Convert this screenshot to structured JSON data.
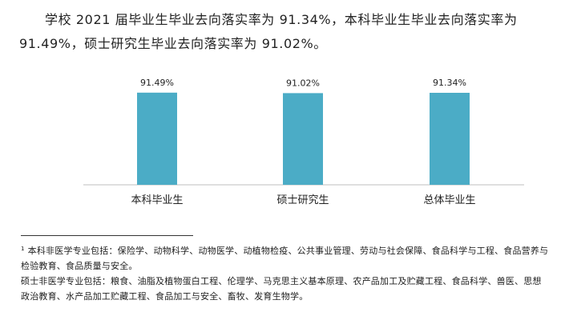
{
  "intro": {
    "text": "学校 2021 届毕业生毕业去向落实率为 91.34%，本科毕业生毕业去向落实率为 91.49%，硕士研究生毕业去向落实率为 91.02%。"
  },
  "chart_data": {
    "type": "bar",
    "categories": [
      "本科毕业生",
      "硕士研究生",
      "总体毕业生"
    ],
    "values": [
      91.49,
      91.02,
      91.34
    ],
    "value_labels": [
      "91.49%",
      "91.02%",
      "91.34%"
    ],
    "unit": "%",
    "ylim": [
      0,
      100
    ],
    "bar_color": "#4bacc6",
    "grid": false,
    "legend": "none"
  },
  "footnotes": {
    "marker": "1",
    "note1": "本科非医学专业包括：保险学、动物科学、动物医学、动植物检疫、公共事业管理、劳动与社会保障、食品科学与工程、食品营养与检验教育、食品质量与安全。",
    "note2": "硕士非医学专业包括：粮食、油脂及植物蛋白工程、伦理学、马克思主义基本原理、农产品加工及贮藏工程、食品科学、兽医、思想政治教育、水产品加工贮藏工程、食品加工与安全、畜牧、发育生物学。"
  }
}
